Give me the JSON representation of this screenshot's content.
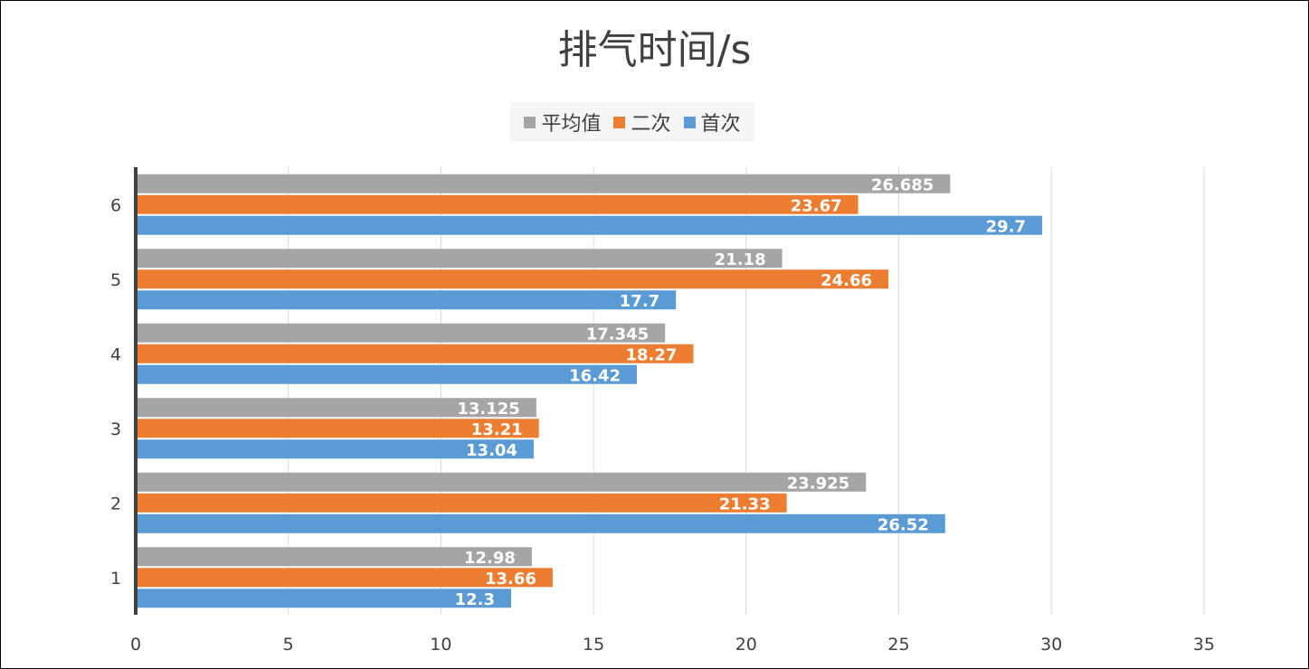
{
  "chart_data": {
    "type": "bar",
    "orientation": "horizontal",
    "title": "排气时间/s",
    "categories": [
      "1",
      "2",
      "3",
      "4",
      "5",
      "6"
    ],
    "series": [
      {
        "name": "平均值",
        "color": "#a5a5a5",
        "values": [
          12.98,
          23.925,
          13.125,
          17.345,
          21.18,
          26.685
        ]
      },
      {
        "name": "二次",
        "color": "#ed7d31",
        "values": [
          13.66,
          21.33,
          13.21,
          18.27,
          24.66,
          23.67
        ]
      },
      {
        "name": "首次",
        "color": "#5b9bd5",
        "values": [
          12.3,
          26.52,
          13.04,
          16.42,
          17.7,
          29.7
        ]
      }
    ],
    "xlim": [
      0,
      35
    ],
    "xticks": [
      "0",
      "5",
      "10",
      "15",
      "20",
      "25",
      "30",
      "35"
    ],
    "grid": true,
    "legend_position": "top",
    "data_labels": true
  }
}
